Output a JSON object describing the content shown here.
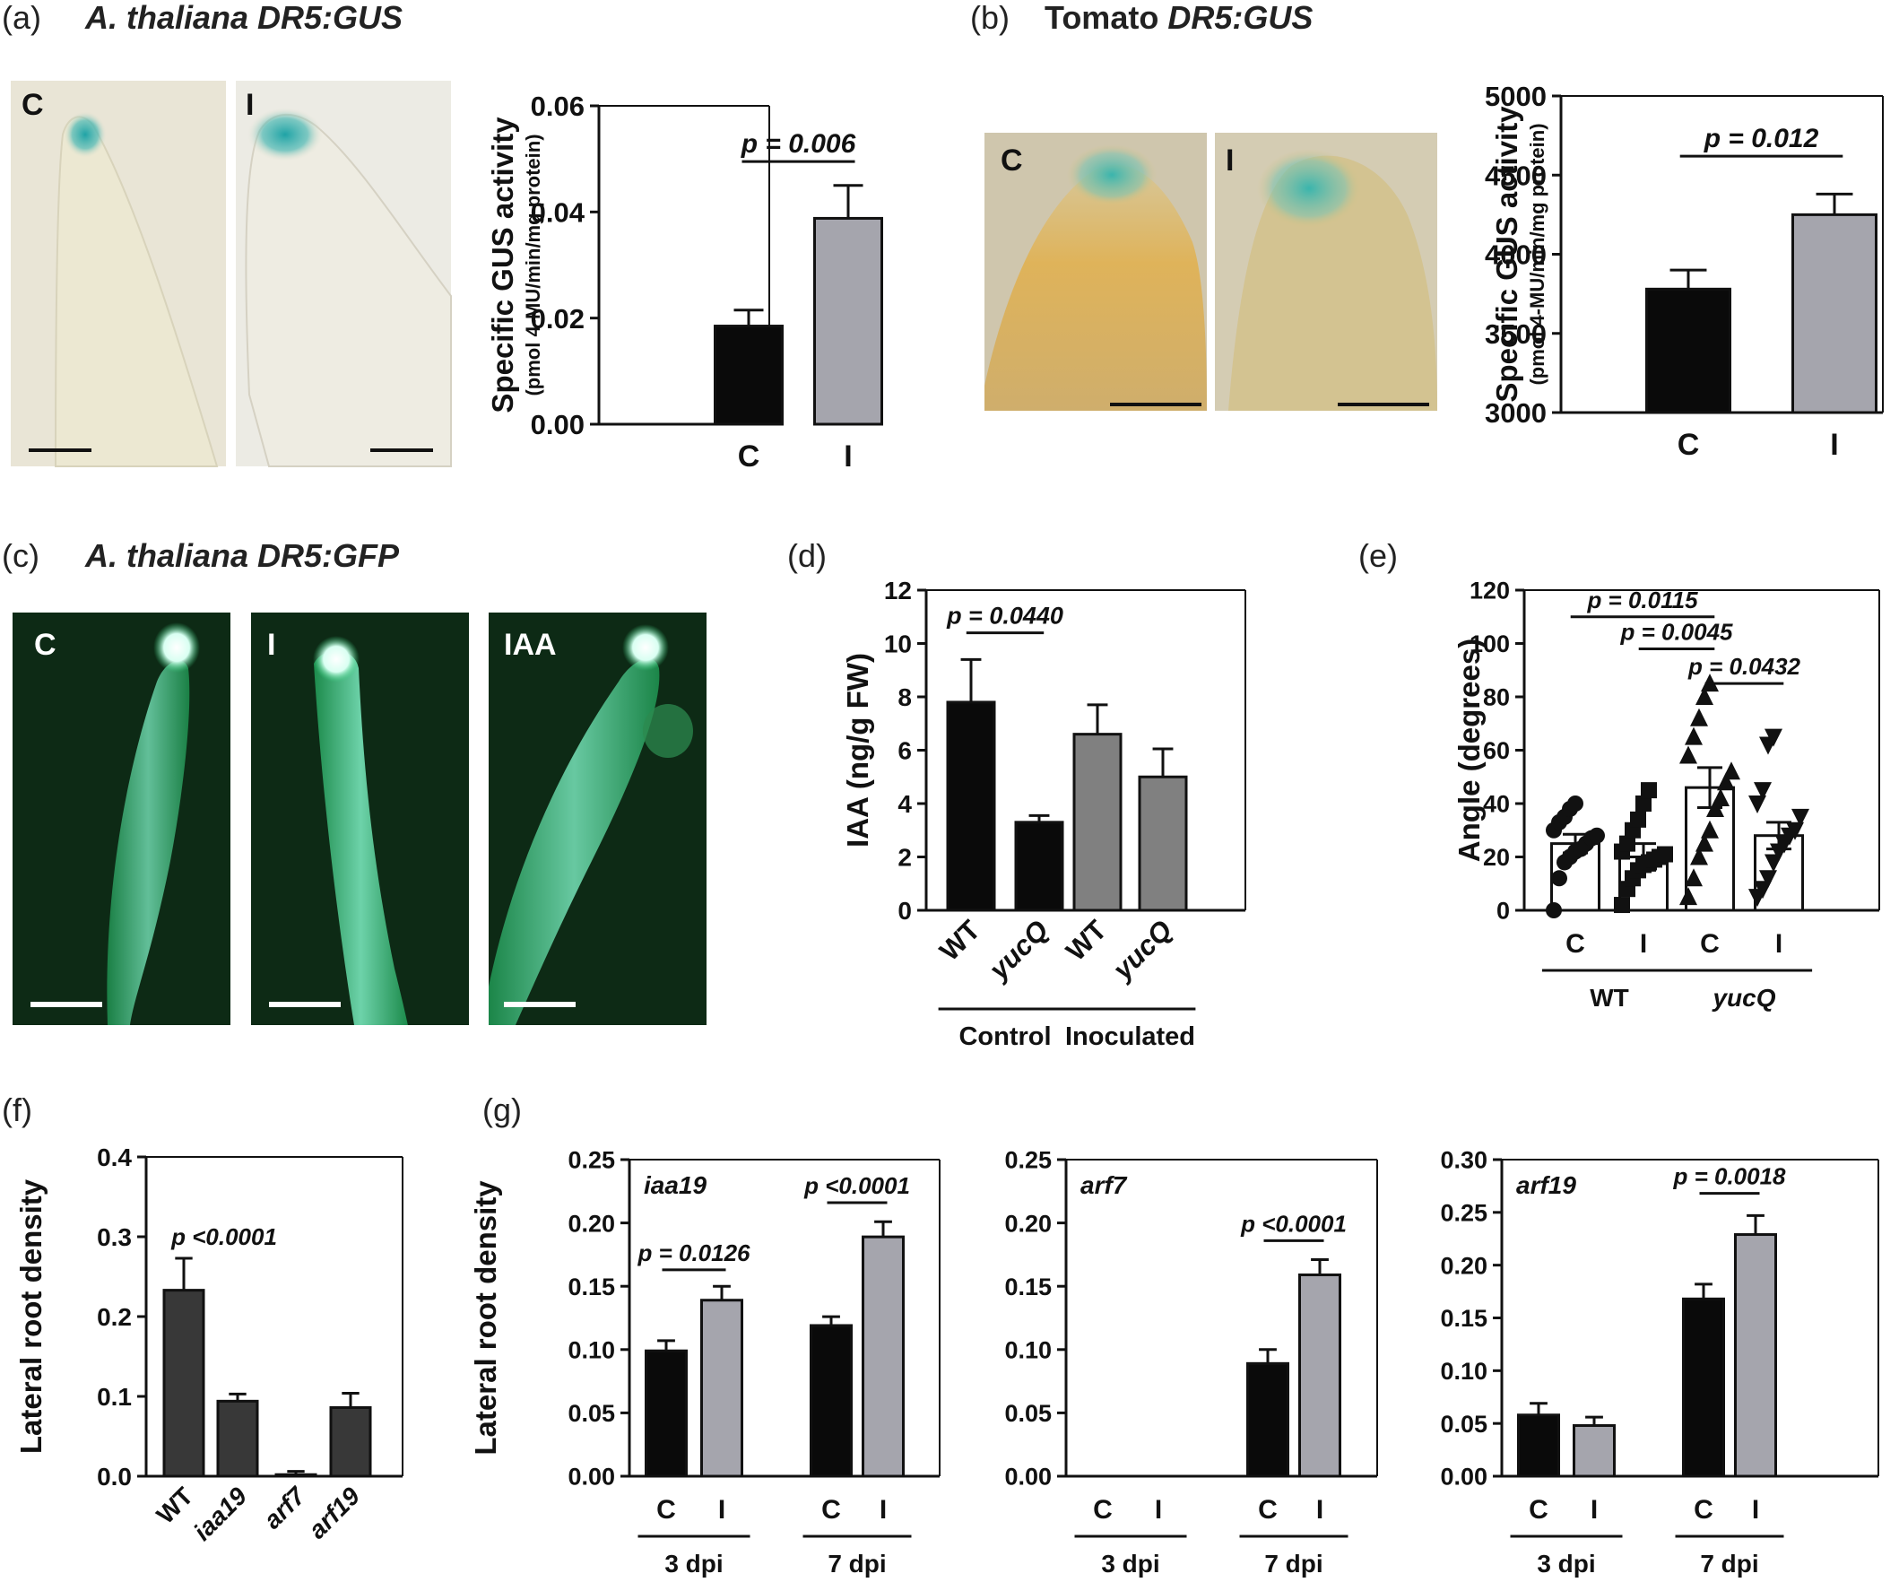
{
  "colors": {
    "black_bar": "#0a0a0a",
    "grey_bar": "#a5a5ad",
    "dark_grey_bar": "#808080",
    "charcoal_bar": "#383838",
    "gus_blue": "#2aa8a8",
    "gfp_green": "#2fd07a"
  },
  "panels": {
    "a": {
      "label": "(a)",
      "title": "A. thaliana DR5:GUS",
      "images": [
        "C",
        "I"
      ]
    },
    "b": {
      "label": "(b)",
      "title_plain": "Tomato",
      "title_italic": "DR5:GUS",
      "images": [
        "C",
        "I"
      ]
    },
    "c": {
      "label": "(c)",
      "title": "A. thaliana DR5:GFP",
      "images": [
        "C",
        "I",
        "IAA"
      ]
    },
    "d": {
      "label": "(d)"
    },
    "e": {
      "label": "(e)"
    },
    "f": {
      "label": "(f)"
    },
    "g": {
      "label": "(g)"
    }
  },
  "chart_data": [
    {
      "id": "a",
      "type": "bar",
      "categories": [
        "C",
        "I"
      ],
      "values": [
        0.0185,
        0.0388
      ],
      "errors": [
        0.003,
        0.0062
      ],
      "colors": [
        "#0a0a0a",
        "#a5a5ad"
      ],
      "ylabel": "Specific GUS activity",
      "ylabel2": "(pmol 4-MU/min/mg protein)",
      "ylim": [
        0,
        0.06
      ],
      "yticks": [
        "0.00",
        "0.02",
        "0.04",
        "0.06"
      ],
      "annotations": [
        {
          "text": "p = 0.006",
          "from": 0,
          "to": 1,
          "y": 0.0495
        }
      ]
    },
    {
      "id": "b",
      "type": "bar",
      "categories": [
        "C",
        "I"
      ],
      "values": [
        3780,
        4250
      ],
      "errors": [
        120,
        130
      ],
      "colors": [
        "#0a0a0a",
        "#a5a5ad"
      ],
      "ylabel": "Specific GUS activity",
      "ylabel2": "(pmol 4-MU/min/mg protein)",
      "ylim": [
        3000,
        5000
      ],
      "yticks": [
        "3000",
        "3500",
        "4000",
        "4500",
        "5000"
      ],
      "annotations": [
        {
          "text": "p = 0.012",
          "from": 0,
          "to": 1,
          "y": 4620
        }
      ]
    },
    {
      "id": "d",
      "type": "bar",
      "categories": [
        "WT",
        "yucQ",
        "WT",
        "yucQ"
      ],
      "values": [
        7.8,
        3.3,
        6.6,
        5.0
      ],
      "errors": [
        1.6,
        0.25,
        1.1,
        1.05
      ],
      "colors": [
        "#0a0a0a",
        "#0a0a0a",
        "#808080",
        "#808080"
      ],
      "ylabel": "IAA (ng/g FW)",
      "ylim": [
        0,
        12
      ],
      "yticks": [
        "0",
        "2",
        "4",
        "6",
        "8",
        "10",
        "12"
      ],
      "groups": [
        {
          "label": "Control",
          "from": 0,
          "to": 1
        },
        {
          "label": "Inoculated",
          "from": 2,
          "to": 3
        }
      ],
      "annotations": [
        {
          "text": "p = 0.0440",
          "from": 0,
          "to": 1,
          "y": 10.4
        }
      ]
    },
    {
      "id": "e",
      "type": "scatter",
      "categories": [
        "C",
        "I",
        "C",
        "I"
      ],
      "means": [
        25,
        20,
        46,
        28
      ],
      "errors": [
        3.5,
        5,
        7.5,
        5
      ],
      "markers": [
        "circle",
        "square",
        "triangle-up",
        "triangle-down"
      ],
      "points": [
        [
          0,
          12,
          18,
          20,
          22,
          23,
          25,
          27,
          28,
          30,
          33,
          35,
          38,
          40
        ],
        [
          2,
          8,
          12,
          15,
          17,
          18,
          19,
          20,
          21,
          22,
          25,
          30,
          34,
          40,
          45
        ],
        [
          5,
          12,
          20,
          25,
          30,
          38,
          42,
          48,
          52,
          58,
          65,
          72,
          80,
          85
        ],
        [
          5,
          8,
          12,
          18,
          22,
          25,
          28,
          30,
          35,
          40,
          45,
          62,
          65
        ]
      ],
      "ylabel": "Angle (degrees)",
      "ylim": [
        0,
        120
      ],
      "yticks": [
        "0",
        "20",
        "40",
        "60",
        "80",
        "100",
        "120"
      ],
      "groups": [
        {
          "label": "WT",
          "from": 0,
          "to": 1
        },
        {
          "label": "yucQ",
          "from": 2,
          "to": 3
        }
      ],
      "annotations": [
        {
          "text": "p = 0.0115",
          "from": 0,
          "to": 2,
          "y": 110
        },
        {
          "text": "p = 0.0045",
          "from": 1,
          "to": 2,
          "y": 98
        },
        {
          "text": "p = 0.0432",
          "from": 2,
          "to": 3,
          "y": 85
        }
      ]
    },
    {
      "id": "f",
      "type": "bar",
      "categories": [
        "WT",
        "iaa19",
        "arf7",
        "arf19"
      ],
      "values": [
        0.233,
        0.094,
        0.002,
        0.086
      ],
      "errors": [
        0.04,
        0.009,
        0.004,
        0.018
      ],
      "colors": [
        "#383838",
        "#383838",
        "#383838",
        "#383838"
      ],
      "ylabel": "Lateral root density",
      "ylim": [
        0,
        0.4
      ],
      "yticks": [
        "0.0",
        "0.1",
        "0.2",
        "0.3",
        "0.4"
      ],
      "annotations": [
        {
          "text": "p <0.0001",
          "at": 0,
          "y": 0.29
        }
      ]
    },
    {
      "id": "g1",
      "type": "bar",
      "subtitle": "iaa19",
      "categories": [
        "C",
        "I",
        "C",
        "I"
      ],
      "values": [
        0.099,
        0.139,
        0.119,
        0.189
      ],
      "errors": [
        0.008,
        0.011,
        0.007,
        0.012
      ],
      "colors": [
        "#0a0a0a",
        "#a5a5ad",
        "#0a0a0a",
        "#a5a5ad"
      ],
      "ylabel": "Lateral root density",
      "ylim": [
        0,
        0.25
      ],
      "yticks": [
        "0.00",
        "0.05",
        "0.10",
        "0.15",
        "0.20",
        "0.25"
      ],
      "groups": [
        {
          "label": "3 dpi",
          "from": 0,
          "to": 1
        },
        {
          "label": "7 dpi",
          "from": 2,
          "to": 3
        }
      ],
      "annotations": [
        {
          "text": "p = 0.0126",
          "from": 0,
          "to": 1,
          "y": 0.163
        },
        {
          "text": "p <0.0001",
          "from": 2,
          "to": 3,
          "y": 0.216
        }
      ]
    },
    {
      "id": "g2",
      "type": "bar",
      "subtitle": "arf7",
      "categories": [
        "C",
        "I",
        "C",
        "I"
      ],
      "values": [
        0,
        0,
        0.089,
        0.159
      ],
      "errors": [
        0,
        0,
        0.011,
        0.012
      ],
      "colors": [
        "#0a0a0a",
        "#a5a5ad",
        "#0a0a0a",
        "#a5a5ad"
      ],
      "ylabel": "",
      "ylim": [
        0,
        0.25
      ],
      "yticks": [
        "0.00",
        "0.05",
        "0.10",
        "0.15",
        "0.20",
        "0.25"
      ],
      "groups": [
        {
          "label": "3 dpi",
          "from": 0,
          "to": 1
        },
        {
          "label": "7 dpi",
          "from": 2,
          "to": 3
        }
      ],
      "annotations": [
        {
          "text": "p <0.0001",
          "from": 2,
          "to": 3,
          "y": 0.186
        }
      ]
    },
    {
      "id": "g3",
      "type": "bar",
      "subtitle": "arf19",
      "categories": [
        "C",
        "I",
        "C",
        "I"
      ],
      "values": [
        0.058,
        0.048,
        0.168,
        0.229
      ],
      "errors": [
        0.011,
        0.008,
        0.014,
        0.018
      ],
      "colors": [
        "#0a0a0a",
        "#a5a5ad",
        "#0a0a0a",
        "#a5a5ad"
      ],
      "ylabel": "",
      "ylim": [
        0,
        0.3
      ],
      "yticks": [
        "0.00",
        "0.05",
        "0.10",
        "0.15",
        "0.20",
        "0.25",
        "0.30"
      ],
      "groups": [
        {
          "label": "3 dpi",
          "from": 0,
          "to": 1
        },
        {
          "label": "7 dpi",
          "from": 2,
          "to": 3
        }
      ],
      "annotations": [
        {
          "text": "p = 0.0018",
          "from": 2,
          "to": 3,
          "y": 0.268
        }
      ]
    }
  ]
}
